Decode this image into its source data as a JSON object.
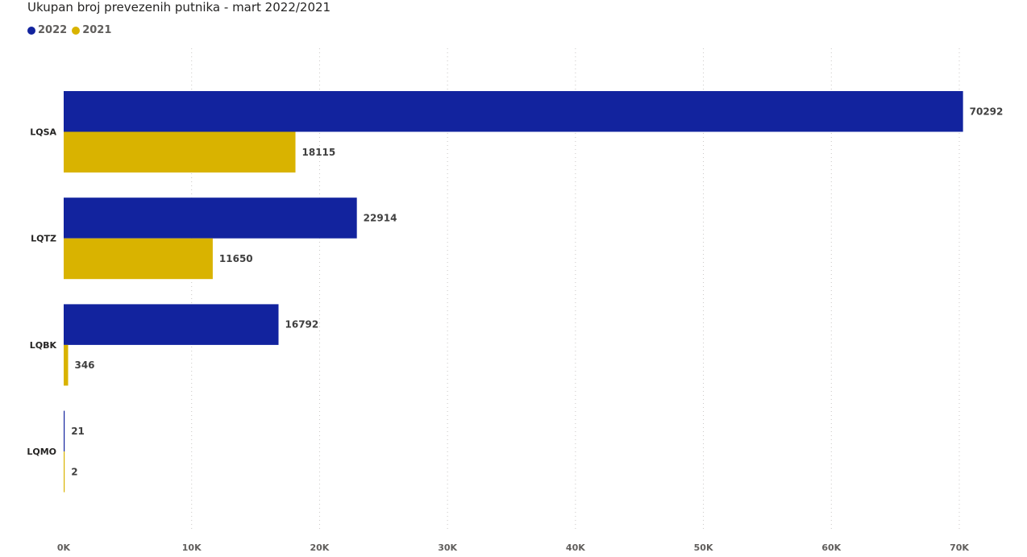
{
  "chart_data": {
    "type": "bar",
    "orientation": "horizontal",
    "title": "Ukupan broj prevezenih putnika - mart 2022/2021",
    "categories": [
      "LQSA",
      "LQTZ",
      "LQBK",
      "LQMO"
    ],
    "series": [
      {
        "name": "2022",
        "color": "#12239e",
        "values": [
          70292,
          22914,
          16792,
          21
        ]
      },
      {
        "name": "2021",
        "color": "#d9b300",
        "values": [
          18115,
          11650,
          346,
          2
        ]
      }
    ],
    "xlim": [
      0,
      70000
    ],
    "x_ticks": [
      0,
      10000,
      20000,
      30000,
      40000,
      50000,
      60000,
      70000
    ],
    "x_tick_labels": [
      "0K",
      "10K",
      "20K",
      "30K",
      "40K",
      "50K",
      "60K",
      "70K"
    ],
    "grid": "vertical-dotted",
    "legend": "top-left"
  }
}
